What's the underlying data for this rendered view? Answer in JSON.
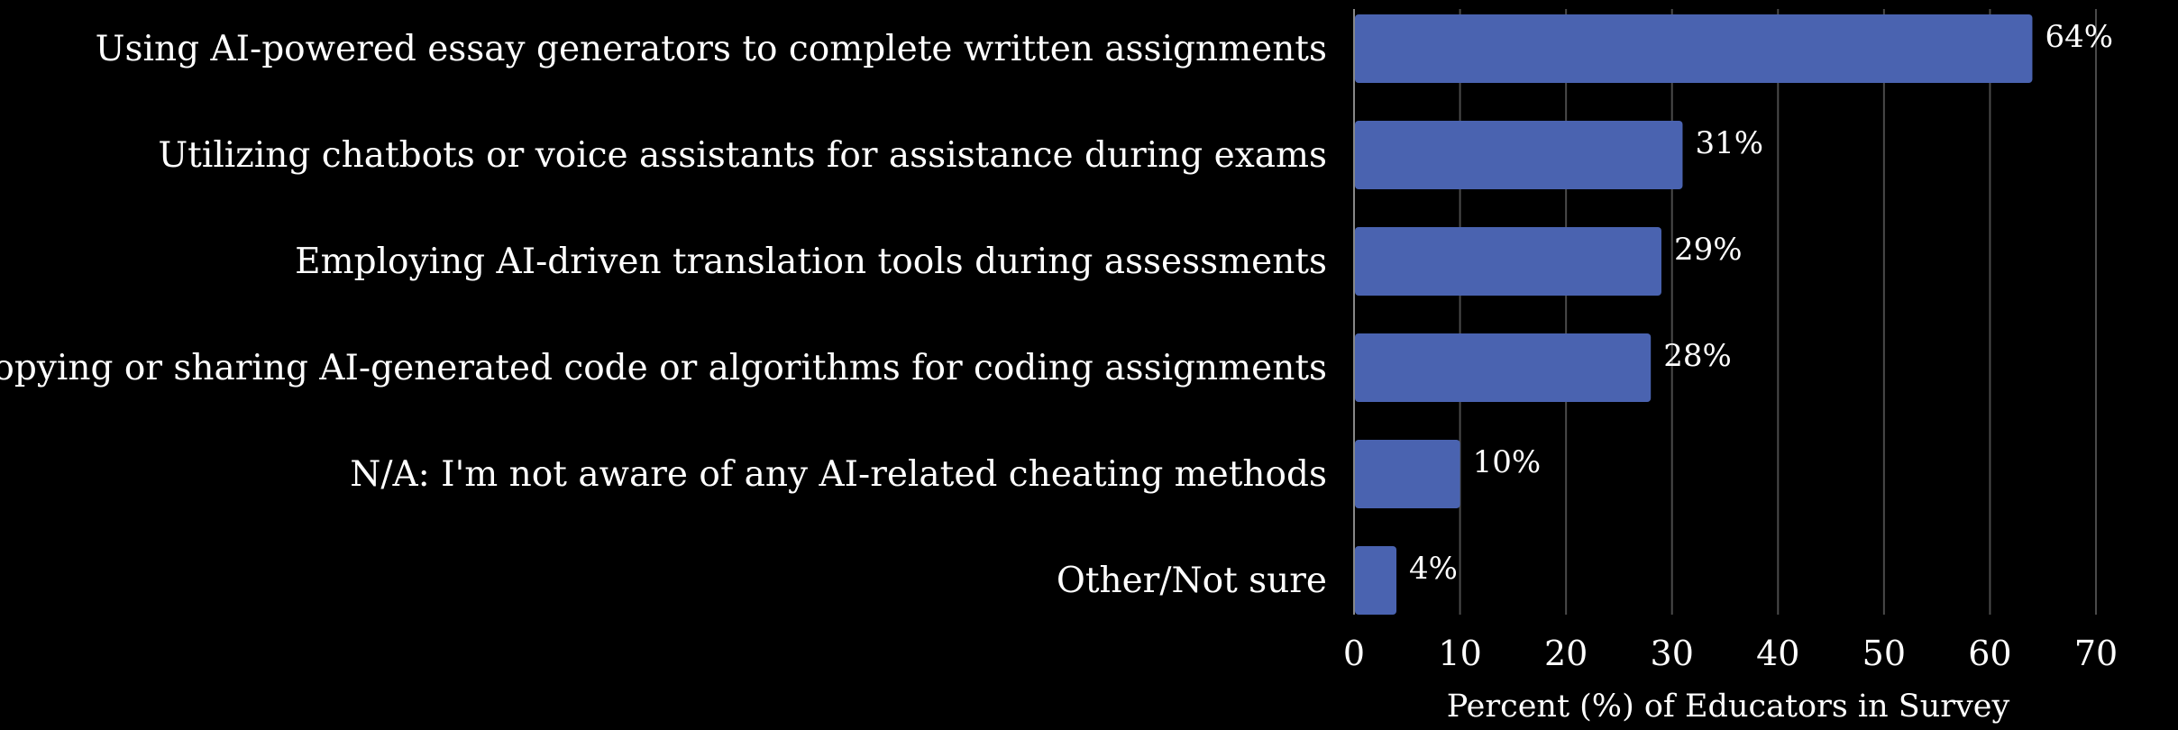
{
  "chart_data": {
    "type": "bar",
    "orientation": "horizontal",
    "categories": [
      "Using AI-powered essay generators to complete written assignments",
      "Utilizing chatbots or voice assistants for assistance during exams",
      "Employing AI-driven translation tools during assessments",
      "Copying or sharing AI-generated code or algorithms for coding assignments",
      "N/A: I'm not aware of any AI-related cheating methods",
      "Other/Not sure"
    ],
    "values": [
      64,
      31,
      29,
      28,
      10,
      4
    ],
    "value_labels": [
      "64%",
      "31%",
      "29%",
      "28%",
      "10%",
      "4%"
    ],
    "xlabel": "Percent (%) of Educators in Survey",
    "ylabel": "",
    "xlim": [
      0,
      70
    ],
    "xticks": [
      0,
      10,
      20,
      30,
      40,
      50,
      60,
      70
    ],
    "grid": "vertical",
    "legend": "none"
  },
  "colors": {
    "background": "#000000",
    "bar": "#4a63b0",
    "gridline": "#4a4a4a",
    "axis": "#888888",
    "text": "#ffffff"
  }
}
